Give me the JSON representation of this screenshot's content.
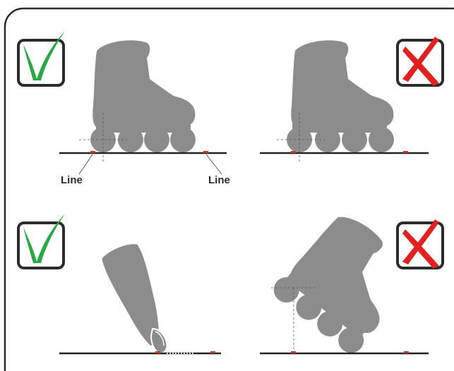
{
  "labels": {
    "line_left": "Line",
    "line_right": "Line"
  },
  "panels": [
    {
      "id": "top-left",
      "verdict": "correct",
      "mark_icon": "green-check-mark-icon"
    },
    {
      "id": "top-right",
      "verdict": "incorrect",
      "mark_icon": "red-x-mark-icon"
    },
    {
      "id": "bottom-left",
      "verdict": "correct",
      "mark_icon": "green-check-mark-icon"
    },
    {
      "id": "bottom-right",
      "verdict": "incorrect",
      "mark_icon": "red-x-mark-icon"
    }
  ],
  "colors": {
    "skate": "#8c8c8c",
    "correct": "#2aa744",
    "incorrect": "#e0211f",
    "marker": "#c0392b",
    "frame": "#2b2b2b",
    "ground": "#222222"
  }
}
